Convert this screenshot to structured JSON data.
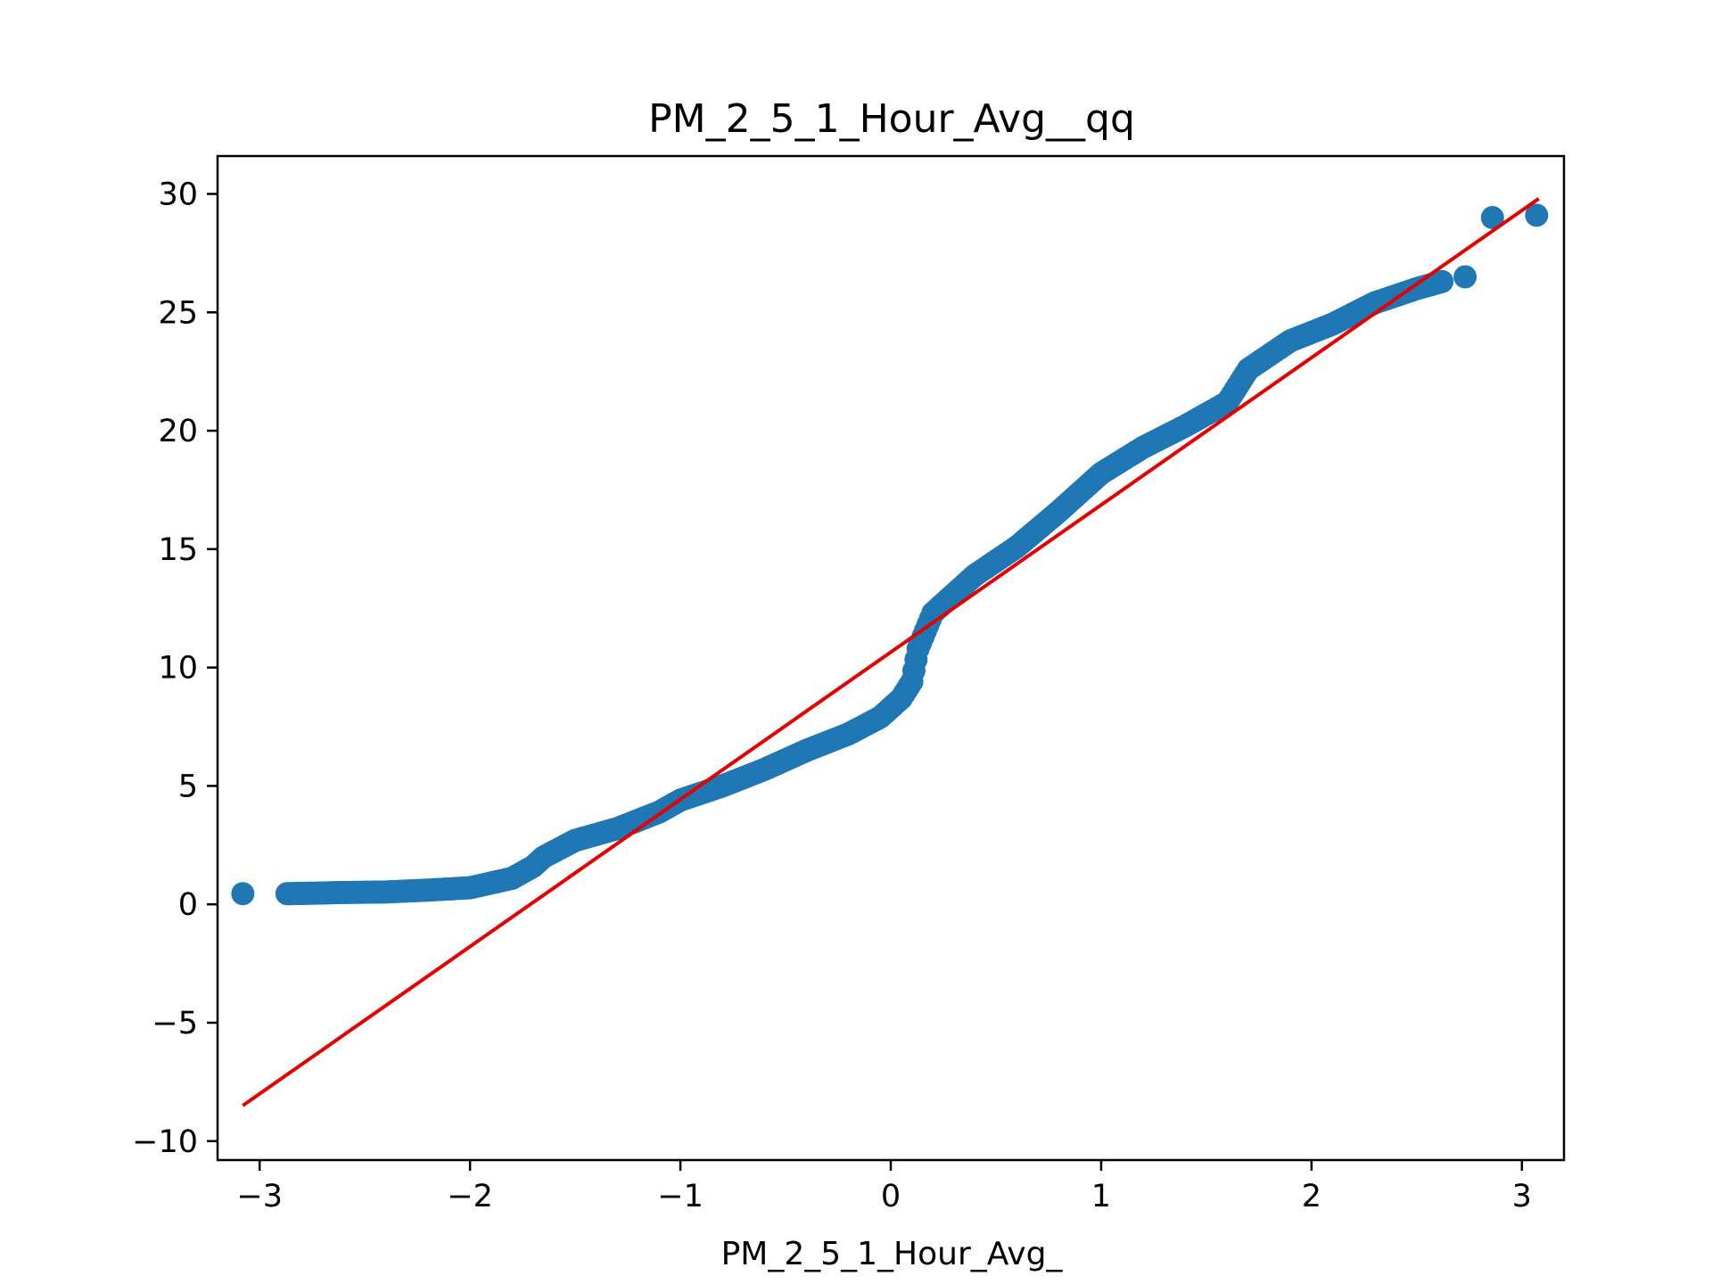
{
  "chart_data": {
    "type": "scatter",
    "title": "PM_2_5_1_Hour_Avg__qq",
    "xlabel": "PM_2_5_1_Hour_Avg_",
    "ylabel": "",
    "xlim": [
      -3.2,
      3.2
    ],
    "ylim": [
      -10.8,
      31.6
    ],
    "xticks": [
      -3,
      -2,
      -1,
      0,
      1,
      2,
      3
    ],
    "xtick_labels": [
      "−3",
      "−2",
      "−1",
      "0",
      "1",
      "2",
      "3"
    ],
    "yticks": [
      -10,
      -5,
      0,
      5,
      10,
      15,
      20,
      25,
      30
    ],
    "ytick_labels": [
      "−10",
      "−5",
      "0",
      "5",
      "10",
      "15",
      "20",
      "25",
      "30"
    ],
    "grid": false,
    "marker_color": "#1f77b4",
    "line_color": "#e50000",
    "reference_line": {
      "x": [
        -3.08,
        3.08
      ],
      "y": [
        -8.5,
        29.8
      ]
    },
    "curve_knots": [
      [
        -3.08,
        0.45
      ],
      [
        -2.87,
        0.45
      ],
      [
        -2.74,
        0.47
      ],
      [
        -2.6,
        0.5
      ],
      [
        -2.4,
        0.52
      ],
      [
        -2.2,
        0.6
      ],
      [
        -2.0,
        0.7
      ],
      [
        -1.9,
        0.9
      ],
      [
        -1.8,
        1.1
      ],
      [
        -1.7,
        1.6
      ],
      [
        -1.65,
        2.0
      ],
      [
        -1.5,
        2.7
      ],
      [
        -1.3,
        3.2
      ],
      [
        -1.1,
        3.9
      ],
      [
        -1.0,
        4.4
      ],
      [
        -0.8,
        5.0
      ],
      [
        -0.6,
        5.7
      ],
      [
        -0.4,
        6.5
      ],
      [
        -0.2,
        7.2
      ],
      [
        -0.05,
        7.9
      ],
      [
        0.05,
        8.7
      ],
      [
        0.1,
        9.4
      ],
      [
        0.13,
        10.8
      ],
      [
        0.2,
        12.3
      ],
      [
        0.3,
        13.1
      ],
      [
        0.4,
        13.9
      ],
      [
        0.6,
        15.1
      ],
      [
        0.8,
        16.6
      ],
      [
        1.0,
        18.2
      ],
      [
        1.2,
        19.3
      ],
      [
        1.4,
        20.2
      ],
      [
        1.6,
        21.2
      ],
      [
        1.7,
        22.6
      ],
      [
        1.9,
        23.8
      ],
      [
        2.1,
        24.5
      ],
      [
        2.3,
        25.4
      ],
      [
        2.5,
        26.0
      ],
      [
        2.62,
        26.3
      ]
    ],
    "tail_points": [
      [
        2.73,
        26.5
      ],
      [
        2.86,
        29.0
      ],
      [
        3.07,
        29.1
      ]
    ]
  }
}
